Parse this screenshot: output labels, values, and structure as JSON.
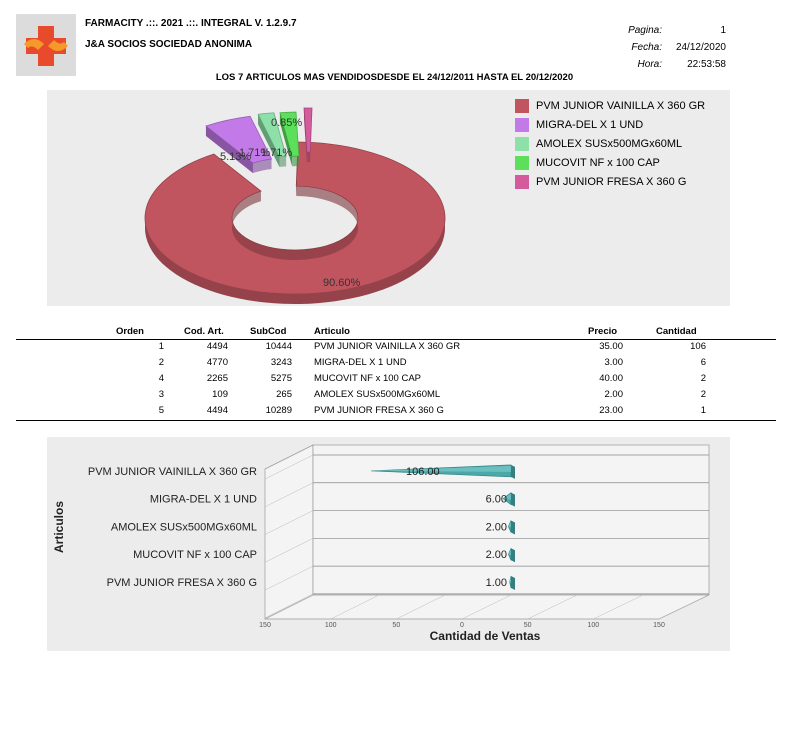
{
  "header": {
    "app_title": "FARMACITY .::. 2021 .::. INTEGRAL  V.  1.2.9.7",
    "company": "J&A SOCIOS SOCIEDAD ANONIMA",
    "pagina_label": "Pagina:",
    "pagina_value": "1",
    "fecha_label": "Fecha:",
    "fecha_value": "24/12/2020",
    "hora_label": "Hora:",
    "hora_value": "22:53:58",
    "logo_icon": "pharmacy-cross-hands-icon"
  },
  "report_title": "LOS 7 ARTICULOS MAS VENDIDOSDESDE EL 24/12/2011 HASTA EL 20/12/2020",
  "table": {
    "columns": [
      "Orden",
      "Cod. Art.",
      "SubCod",
      "Articulo",
      "Precio",
      "Cantidad"
    ],
    "rows": [
      {
        "orden": "1",
        "cod": "4494",
        "subcod": "10444",
        "articulo": "PVM JUNIOR VAINILLA X 360 GR",
        "precio": "35.00",
        "cantidad": "106"
      },
      {
        "orden": "2",
        "cod": "4770",
        "subcod": "3243",
        "articulo": "MIGRA-DEL X 1 UND",
        "precio": "3.00",
        "cantidad": "6"
      },
      {
        "orden": "4",
        "cod": "2265",
        "subcod": "5275",
        "articulo": "MUCOVIT NF x 100 CAP",
        "precio": "40.00",
        "cantidad": "2"
      },
      {
        "orden": "3",
        "cod": "109",
        "subcod": "265",
        "articulo": "AMOLEX SUSx500MGx60ML",
        "precio": "2.00",
        "cantidad": "2"
      },
      {
        "orden": "5",
        "cod": "4494",
        "subcod": "10289",
        "articulo": "PVM JUNIOR FRESA X 360 G",
        "precio": "23.00",
        "cantidad": "1"
      }
    ]
  },
  "chart_data": [
    {
      "type": "pie",
      "title": "",
      "categories": [
        "PVM JUNIOR VAINILLA X 360 GR",
        "MIGRA-DEL X 1 UND",
        "AMOLEX SUSx500MGx60ML",
        "MUCOVIT NF x 100 CAP",
        "PVM JUNIOR FRESA X 360 G"
      ],
      "values": [
        90.6,
        5.13,
        1.71,
        1.71,
        0.85
      ],
      "labels": [
        "90.60%",
        "5.13%",
        "1.71%",
        "1.71%",
        "0.85%"
      ],
      "colors": [
        "#c0555f",
        "#c27ae8",
        "#8ce0a8",
        "#5ce05c",
        "#d45c9c"
      ],
      "legend": "right"
    },
    {
      "type": "bar",
      "orientation": "horizontal",
      "categories": [
        "PVM JUNIOR VAINILLA X 360 GR",
        "MIGRA-DEL X 1 UND",
        "AMOLEX SUSx500MGx60ML",
        "MUCOVIT NF x 100 CAP",
        "PVM JUNIOR FRESA X 360 G"
      ],
      "values": [
        106,
        6,
        2,
        2,
        1
      ],
      "labels": [
        "106.00",
        "6.00",
        "2.00",
        "2.00",
        "1.00"
      ],
      "xlabel": "Cantidad de Ventas",
      "ylabel": "Articulos",
      "xticks": [
        "150",
        "100",
        "50",
        "0",
        "50",
        "100",
        "150"
      ],
      "color": "#4aa8a8",
      "grid": true
    }
  ]
}
